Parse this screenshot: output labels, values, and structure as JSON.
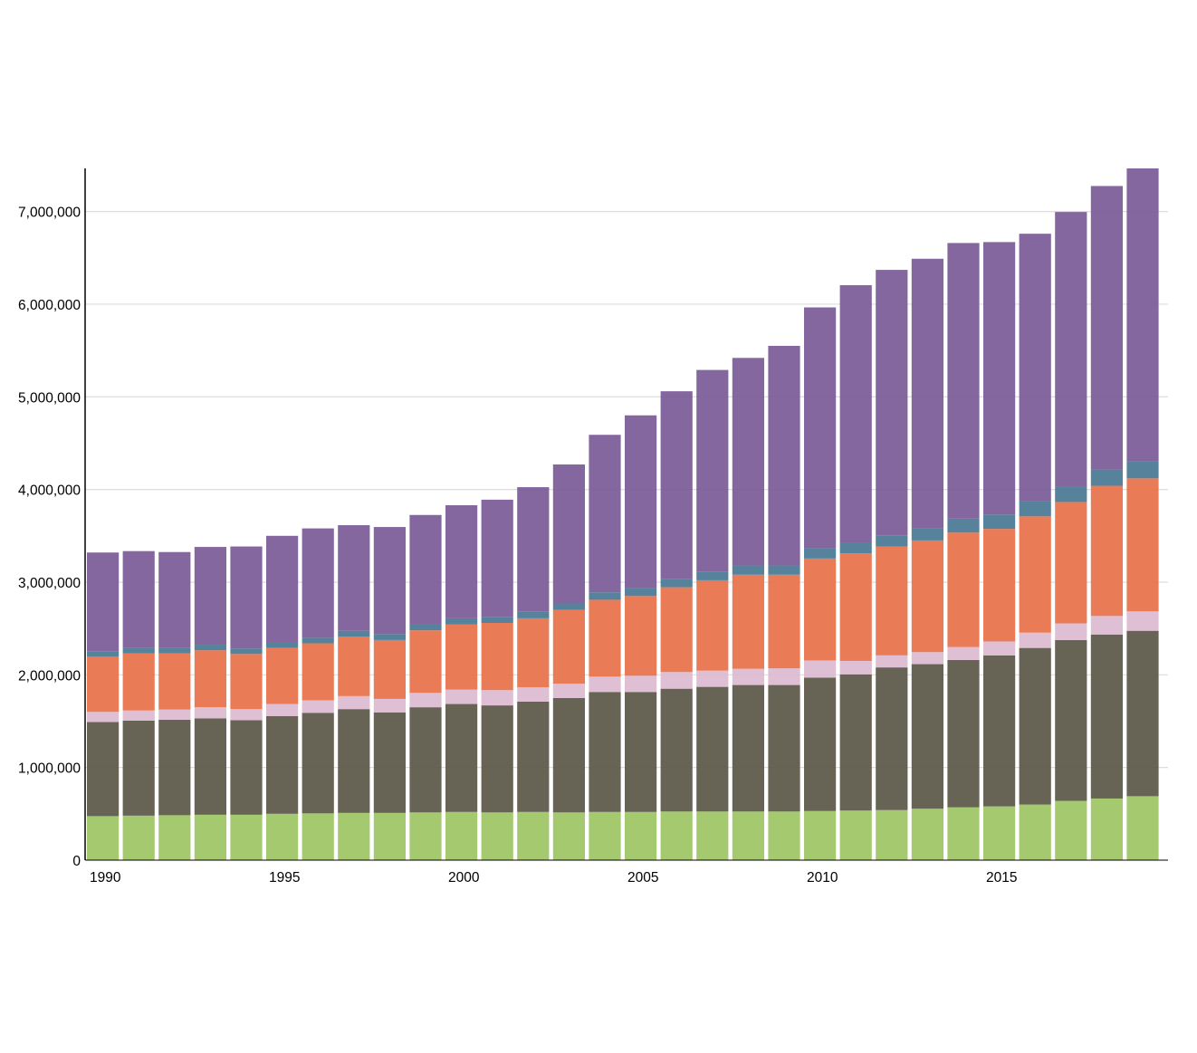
{
  "colors": {
    "background": "#ffffff",
    "grid": "#dddddd",
    "axis": "#000000",
    "text": "#000000"
  },
  "chart_data": {
    "type": "bar",
    "stacked": true,
    "title": "",
    "xlabel": "",
    "ylabel": "",
    "grid": true,
    "legend": "none",
    "ylim": [
      0,
      7465000
    ],
    "y_ticks": [
      0,
      1000000,
      2000000,
      3000000,
      4000000,
      5000000,
      6000000,
      7000000
    ],
    "y_tick_labels": [
      "0",
      "1,000,000",
      "2,000,000",
      "3,000,000",
      "4,000,000",
      "5,000,000",
      "6,000,000",
      "7,000,000"
    ],
    "x_tick_labels": [
      "1990",
      "1995",
      "2000",
      "2005",
      "2010",
      "2015"
    ],
    "categories": [
      1990,
      1991,
      1992,
      1993,
      1994,
      1995,
      1996,
      1997,
      1998,
      1999,
      2000,
      2001,
      2002,
      2003,
      2004,
      2005,
      2006,
      2007,
      2008,
      2009,
      2010,
      2011,
      2012,
      2013,
      2014,
      2015,
      2016,
      2017,
      2018,
      2019
    ],
    "series": [
      {
        "color": "#9dc564",
        "values": [
          475000,
          480000,
          485000,
          490000,
          490000,
          500000,
          505000,
          510000,
          510000,
          515000,
          520000,
          515000,
          520000,
          515000,
          520000,
          520000,
          525000,
          525000,
          525000,
          525000,
          530000,
          535000,
          540000,
          555000,
          570000,
          580000,
          600000,
          640000,
          665000,
          690000
        ]
      },
      {
        "color": "#5c5848",
        "values": [
          1015000,
          1025000,
          1030000,
          1040000,
          1020000,
          1055000,
          1085000,
          1120000,
          1085000,
          1135000,
          1165000,
          1155000,
          1190000,
          1235000,
          1295000,
          1295000,
          1325000,
          1345000,
          1365000,
          1365000,
          1440000,
          1470000,
          1540000,
          1560000,
          1590000,
          1630000,
          1690000,
          1735000,
          1770000,
          1785000
        ]
      },
      {
        "color": "#dcbad0",
        "values": [
          110000,
          110000,
          110000,
          120000,
          120000,
          130000,
          135000,
          140000,
          145000,
          155000,
          155000,
          165000,
          155000,
          155000,
          165000,
          175000,
          180000,
          175000,
          175000,
          180000,
          185000,
          145000,
          130000,
          130000,
          140000,
          150000,
          165000,
          180000,
          200000,
          210000
        ]
      },
      {
        "color": "#e7724a",
        "values": [
          595000,
          615000,
          605000,
          615000,
          595000,
          605000,
          615000,
          640000,
          635000,
          675000,
          705000,
          725000,
          745000,
          795000,
          830000,
          860000,
          915000,
          975000,
          1015000,
          1010000,
          1100000,
          1160000,
          1175000,
          1205000,
          1235000,
          1215000,
          1255000,
          1310000,
          1405000,
          1435000
        ]
      },
      {
        "color": "#4a7895",
        "values": [
          60000,
          60000,
          60000,
          60000,
          60000,
          60000,
          60000,
          65000,
          65000,
          65000,
          65000,
          65000,
          70000,
          70000,
          80000,
          85000,
          90000,
          95000,
          100000,
          100000,
          110000,
          115000,
          120000,
          135000,
          150000,
          155000,
          165000,
          165000,
          175000,
          185000
        ]
      },
      {
        "color": "#7c5b98",
        "values": [
          1065000,
          1045000,
          1035000,
          1055000,
          1100000,
          1150000,
          1180000,
          1140000,
          1155000,
          1180000,
          1220000,
          1265000,
          1345000,
          1500000,
          1700000,
          1865000,
          2025000,
          2175000,
          2240000,
          2370000,
          2600000,
          2780000,
          2865000,
          2905000,
          2975000,
          2940000,
          2885000,
          2965000,
          3060000,
          3160000
        ]
      }
    ]
  }
}
